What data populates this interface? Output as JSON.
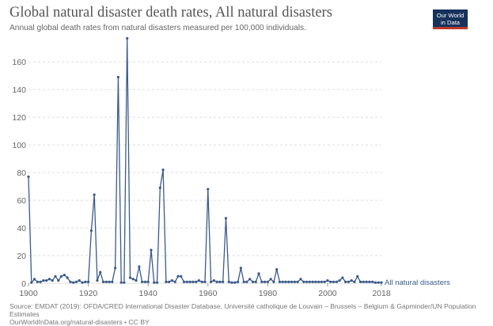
{
  "header": {
    "title": "Global natural disaster death rates, All natural disasters",
    "subtitle": "Annual global death rates from natural disasters measured per 100,000 individuals.",
    "logo_line1": "Our World",
    "logo_line2": "in Data"
  },
  "footer": {
    "source": "Source: EMDAT (2019): OFDA/CRED International Disaster Database, Université catholique de Louvain – Brussels – Belgium & Gapminder/UN Population Estimates",
    "url": "OurWorldInData.org/natural-disasters • CC BY"
  },
  "colors": {
    "series": "#3a5b8c",
    "grid": "#dddddd"
  },
  "chart_data": {
    "type": "line",
    "title": "Global natural disaster death rates, All natural disasters",
    "subtitle": "Annual global death rates from natural disasters measured per 100,000 individuals.",
    "xlim": [
      1900,
      2018
    ],
    "ylim": [
      0,
      175
    ],
    "x_ticks": [
      1900,
      1920,
      1940,
      1960,
      1980,
      2000,
      2018
    ],
    "y_ticks": [
      0,
      20,
      40,
      60,
      80,
      100,
      120,
      140,
      160
    ],
    "x_tick_labels": [
      "1900",
      "1920",
      "1940",
      "1960",
      "1980",
      "2000",
      "2018"
    ],
    "y_tick_labels": [
      "0",
      "20",
      "40",
      "60",
      "80",
      "100",
      "120",
      "140",
      "160"
    ],
    "grid": "horizontal dashed",
    "legend": "end-of-line label",
    "series": [
      {
        "name": "All natural disasters",
        "x": [
          1900,
          1901,
          1902,
          1903,
          1904,
          1905,
          1906,
          1907,
          1908,
          1909,
          1910,
          1911,
          1912,
          1913,
          1914,
          1915,
          1916,
          1917,
          1918,
          1919,
          1920,
          1921,
          1922,
          1923,
          1924,
          1925,
          1926,
          1927,
          1928,
          1929,
          1930,
          1931,
          1932,
          1933,
          1934,
          1935,
          1936,
          1937,
          1938,
          1939,
          1940,
          1941,
          1942,
          1943,
          1944,
          1945,
          1946,
          1947,
          1948,
          1949,
          1950,
          1951,
          1952,
          1953,
          1954,
          1955,
          1956,
          1957,
          1958,
          1959,
          1960,
          1961,
          1962,
          1963,
          1964,
          1965,
          1966,
          1967,
          1968,
          1969,
          1970,
          1971,
          1972,
          1973,
          1974,
          1975,
          1976,
          1977,
          1978,
          1979,
          1980,
          1981,
          1982,
          1983,
          1984,
          1985,
          1986,
          1987,
          1988,
          1989,
          1990,
          1991,
          1992,
          1993,
          1994,
          1995,
          1996,
          1997,
          1998,
          1999,
          2000,
          2001,
          2002,
          2003,
          2004,
          2005,
          2006,
          2007,
          2008,
          2009,
          2010,
          2011,
          2012,
          2013,
          2014,
          2015,
          2016,
          2017,
          2018
        ],
        "values": [
          77,
          0.5,
          3,
          1,
          1,
          2,
          2,
          3,
          2,
          5,
          2,
          5,
          6,
          4,
          1,
          0.5,
          1,
          2,
          0.5,
          1,
          1,
          38,
          64,
          2,
          8,
          1,
          1,
          1,
          1,
          11,
          149,
          0.5,
          0.5,
          177,
          4,
          3,
          2,
          12,
          1,
          1,
          1,
          24,
          0.5,
          0.5,
          69,
          82,
          1,
          1,
          2,
          1,
          5,
          5,
          1,
          1,
          1,
          1,
          1,
          2,
          1,
          1,
          68,
          1,
          2,
          1,
          1,
          1,
          47,
          1,
          0.5,
          0.5,
          1,
          11,
          1,
          1,
          3,
          1,
          1,
          7,
          1,
          1,
          1,
          3,
          1,
          10,
          1,
          1,
          1,
          1,
          1,
          1,
          1,
          3,
          1,
          1,
          1,
          1,
          1,
          1,
          1,
          1,
          2,
          1,
          1,
          1,
          2,
          4,
          1,
          1,
          2,
          1,
          5,
          1,
          1,
          1,
          1,
          1,
          0.5,
          0.5,
          0.5
        ]
      }
    ]
  }
}
